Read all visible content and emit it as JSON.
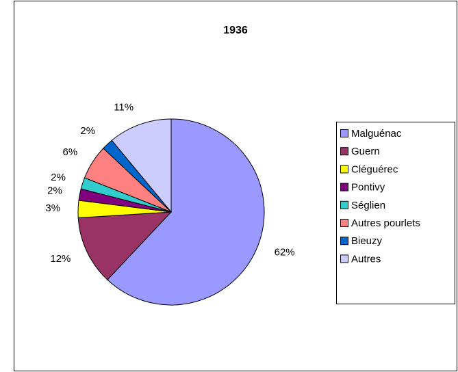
{
  "chart_data": {
    "type": "pie",
    "title": "1936",
    "categories": [
      "Malguénac",
      "Guern",
      "Cléguérec",
      "Pontivy",
      "Séglien",
      "Autres pourlets",
      "Bieuzy",
      "Autres"
    ],
    "values": [
      62,
      12,
      3,
      2,
      2,
      6,
      2,
      11
    ],
    "value_labels": [
      "62%",
      "12%",
      "3%",
      "2%",
      "2%",
      "6%",
      "2%",
      "11%"
    ],
    "colors": [
      "#9999ff",
      "#993366",
      "#ffff00",
      "#800080",
      "#33cccc",
      "#ff8080",
      "#0066cc",
      "#ccccff"
    ],
    "legend": "right"
  }
}
